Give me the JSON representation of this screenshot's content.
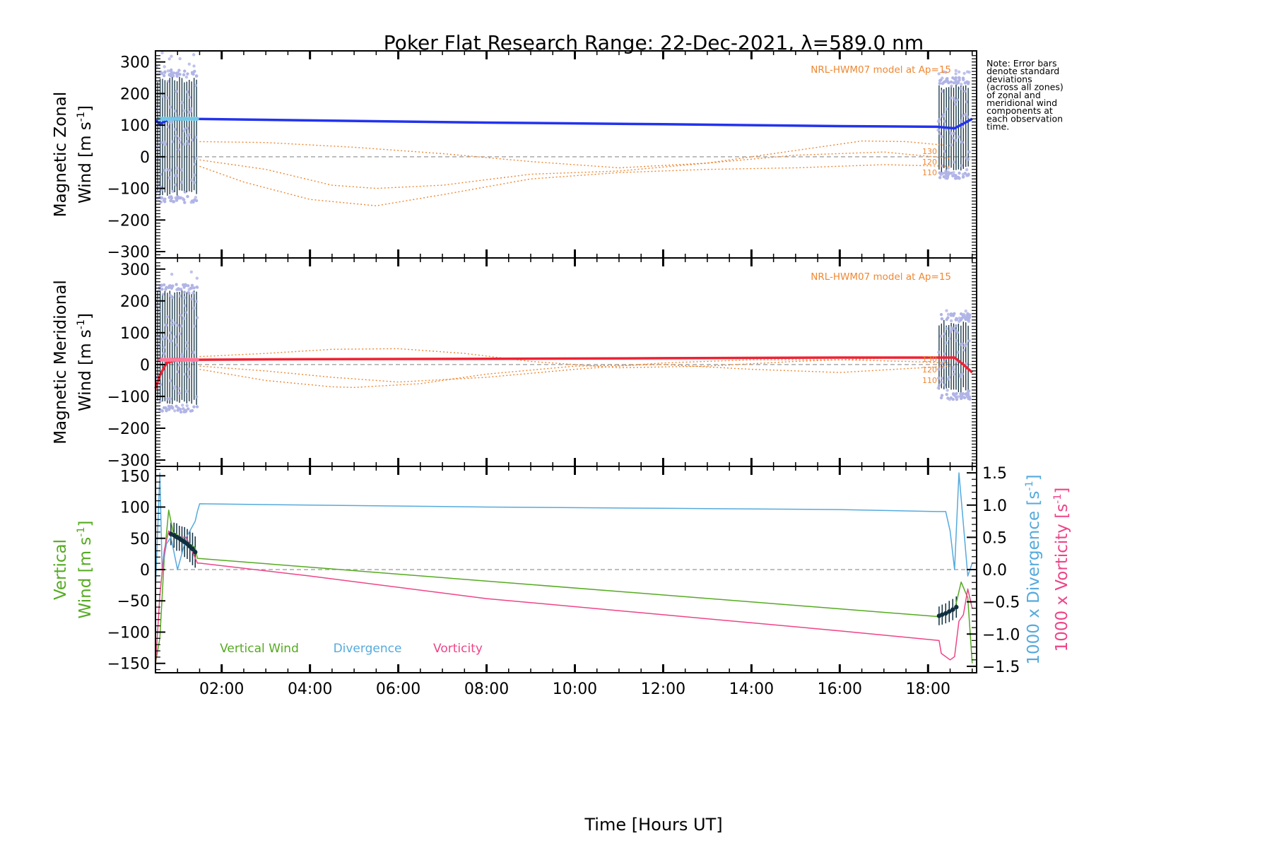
{
  "chart_data": {
    "type": "line",
    "title": "Poker Flat Research Range: 22-Dec-2021, λ=589.0 nm",
    "xlabel": "Time [Hours UT]",
    "xlim": [
      0.5,
      19.1
    ],
    "x_ticks": [
      2,
      4,
      6,
      8,
      10,
      12,
      14,
      16,
      18
    ],
    "x_tick_labels": [
      "02:00",
      "04:00",
      "06:00",
      "08:00",
      "10:00",
      "12:00",
      "14:00",
      "16:00",
      "18:00"
    ],
    "note": [
      "Note: Error bars",
      "denote standard",
      "deviations",
      "(across all zones)",
      "of zonal and",
      "meridional wind",
      "components at",
      "each observation",
      "time."
    ],
    "colors": {
      "zonal": "#2233ee",
      "meridional": "#ee2233",
      "model": "#ee8833",
      "zone_points": "#b0b4e6",
      "zone_cyan": "#70c8e8",
      "error_bar": "#0f2f3f",
      "vertical": "#55aa22",
      "divergence": "#55aadd",
      "vorticity": "#ee4488",
      "zero_line": "#999999"
    },
    "panels": [
      {
        "id": "zonal",
        "ylabel_line1": "Magnetic Zonal",
        "ylabel_line2": "Wind [m s",
        "ylabel_sup": "-1",
        "ylabel_close": "]",
        "ylim": [
          -320,
          335
        ],
        "yticks": [
          -300,
          -200,
          -100,
          0,
          100,
          200,
          300
        ],
        "model_label": "NRL-HWM07 model at Ap=15",
        "model_altitudes": [
          "130",
          "120",
          "110"
        ],
        "main_series": {
          "name": "Zonal wind",
          "x": [
            0.5,
            0.6,
            0.7,
            0.8,
            1.0,
            1.4,
            4,
            8,
            12,
            16,
            18.2,
            18.6,
            18.8,
            19.0
          ],
          "y": [
            115,
            105,
            110,
            120,
            122,
            120,
            115,
            108,
            103,
            97,
            95,
            90,
            105,
            120
          ]
        },
        "model_series": [
          {
            "name": "130 km",
            "x": [
              1.5,
              3,
              5,
              7,
              9,
              11,
              13,
              15,
              16.5,
              17.5,
              18.5
            ],
            "y": [
              48,
              45,
              30,
              10,
              -15,
              -35,
              -20,
              20,
              50,
              48,
              35
            ]
          },
          {
            "name": "120 km",
            "x": [
              1.5,
              3,
              4.5,
              5.5,
              7,
              9,
              11,
              13,
              15,
              17,
              18.5
            ],
            "y": [
              -10,
              -40,
              -90,
              -100,
              -90,
              -55,
              -45,
              -20,
              5,
              15,
              -5
            ]
          },
          {
            "name": "110 km",
            "x": [
              1.5,
              2.5,
              4,
              5.5,
              7,
              9,
              11,
              13,
              15,
              17,
              18.5
            ],
            "y": [
              -30,
              -80,
              -135,
              -155,
              -120,
              -70,
              -50,
              -40,
              -35,
              -25,
              -30
            ]
          }
        ]
      },
      {
        "id": "meridional",
        "ylabel_line1": "Magnetic Meridional",
        "ylabel_line2": "Wind [m s",
        "ylabel_sup": "-1",
        "ylabel_close": "]",
        "ylim": [
          -320,
          335
        ],
        "yticks": [
          -300,
          -200,
          -100,
          0,
          100,
          200,
          300
        ],
        "model_label": "NRL-HWM07 model at Ap=15",
        "model_altitudes": [
          "130",
          "120",
          "110"
        ],
        "main_series": {
          "name": "Meridional wind",
          "x": [
            0.5,
            0.6,
            0.75,
            1.0,
            1.4,
            4,
            8,
            12,
            16,
            18.2,
            18.6,
            18.8,
            19.0
          ],
          "y": [
            -75,
            -35,
            5,
            15,
            15,
            17,
            18,
            20,
            22,
            22,
            22,
            0,
            -25
          ]
        },
        "model_series": [
          {
            "name": "130 km",
            "x": [
              1.5,
              3,
              4.5,
              6,
              7.5,
              9,
              11,
              13,
              15,
              17,
              18.5
            ],
            "y": [
              25,
              35,
              48,
              50,
              35,
              10,
              -10,
              -5,
              10,
              20,
              20
            ]
          },
          {
            "name": "120 km",
            "x": [
              1.5,
              3,
              4.5,
              6,
              8,
              10,
              12,
              14,
              16,
              17.5,
              18.5
            ],
            "y": [
              -5,
              -20,
              -40,
              -55,
              -40,
              -15,
              5,
              15,
              15,
              10,
              5
            ]
          },
          {
            "name": "110 km",
            "x": [
              1.5,
              3,
              4.5,
              5,
              6.5,
              8,
              10,
              12,
              14,
              16,
              18.5
            ],
            "y": [
              -15,
              -50,
              -70,
              -72,
              -60,
              -30,
              -5,
              0,
              -15,
              -25,
              -5
            ]
          }
        ]
      }
    ],
    "bottom_panel": {
      "ylabel_left_line1": "Vertical",
      "ylabel_left_line2": "Wind [m s",
      "ylabel_left_sup": "-1",
      "ylabel_left_close": "]",
      "ylabel_right1": "1000 x Divergence [s",
      "ylabel_right1_sup": "-1",
      "ylabel_right1_close": "]",
      "ylabel_right2": "1000 x Vorticity [s",
      "ylabel_right2_sup": "-1",
      "ylabel_right2_close": "]",
      "ylim_left": [
        -165,
        165
      ],
      "ylim_right": [
        -1.6,
        1.6
      ],
      "yticks_left": [
        -150,
        -100,
        -50,
        0,
        50,
        100,
        150
      ],
      "yticks_right": [
        -1.5,
        -1.0,
        -0.5,
        0.0,
        0.5,
        1.0,
        1.5
      ],
      "ytick_labels_right": [
        "-1.5",
        "-1.0",
        "-0.5",
        "0.0",
        "0.5",
        "1.0",
        "1.5"
      ],
      "legend": [
        "Vertical Wind",
        "Divergence",
        "Vorticity"
      ],
      "series": [
        {
          "name": "Vertical Wind",
          "axis": "left",
          "x": [
            0.5,
            0.6,
            0.7,
            0.8,
            0.9,
            1.0,
            1.2,
            1.4,
            1.45,
            18.2,
            18.45,
            18.6,
            18.75,
            18.9,
            19.0
          ],
          "y": [
            -150,
            -110,
            20,
            95,
            60,
            55,
            45,
            35,
            18,
            -75,
            -70,
            -65,
            -20,
            -45,
            -150
          ]
        },
        {
          "name": "Divergence",
          "axis": "right",
          "x": [
            0.5,
            0.6,
            0.65,
            0.75,
            0.85,
            1.0,
            1.2,
            1.4,
            1.45,
            1.5,
            4,
            8,
            12,
            16,
            18.2,
            18.4,
            18.5,
            18.6,
            18.7,
            18.8,
            18.9,
            19.0
          ],
          "y": [
            -0.3,
            1.5,
            0.0,
            0.4,
            0.5,
            0.0,
            0.5,
            0.75,
            0.9,
            1.02,
            1.0,
            0.97,
            0.95,
            0.93,
            0.9,
            0.9,
            0.6,
            0.0,
            1.5,
            0.7,
            -0.1,
            0.1
          ]
        },
        {
          "name": "Vorticity",
          "axis": "right",
          "x": [
            0.5,
            0.6,
            0.7,
            0.8,
            1.0,
            1.2,
            1.45,
            1.5,
            4,
            8,
            12,
            16,
            18.25,
            18.3,
            18.5,
            18.6,
            18.7,
            18.8,
            18.9,
            19.0
          ],
          "y": [
            -1.5,
            -0.4,
            0.3,
            0.6,
            0.5,
            0.5,
            0.1,
            0.1,
            -0.1,
            -0.45,
            -0.7,
            -0.95,
            -1.1,
            -1.3,
            -1.4,
            -1.35,
            -0.8,
            -0.7,
            -0.3,
            -0.6
          ]
        }
      ],
      "error_bar_points": [
        {
          "x": 0.85,
          "y": 57,
          "err": 18
        },
        {
          "x": 0.92,
          "y": 55,
          "err": 20
        },
        {
          "x": 0.98,
          "y": 52,
          "err": 22
        },
        {
          "x": 1.04,
          "y": 50,
          "err": 20
        },
        {
          "x": 1.1,
          "y": 47,
          "err": 22
        },
        {
          "x": 1.16,
          "y": 44,
          "err": 24
        },
        {
          "x": 1.22,
          "y": 41,
          "err": 24
        },
        {
          "x": 1.28,
          "y": 37,
          "err": 25
        },
        {
          "x": 1.34,
          "y": 33,
          "err": 26
        },
        {
          "x": 1.4,
          "y": 28,
          "err": 25
        },
        {
          "x": 18.25,
          "y": -74,
          "err": 15
        },
        {
          "x": 18.32,
          "y": -72,
          "err": 16
        },
        {
          "x": 18.4,
          "y": -70,
          "err": 16
        },
        {
          "x": 18.48,
          "y": -67,
          "err": 17
        },
        {
          "x": 18.56,
          "y": -64,
          "err": 17
        },
        {
          "x": 18.64,
          "y": -60,
          "err": 17
        }
      ]
    }
  }
}
